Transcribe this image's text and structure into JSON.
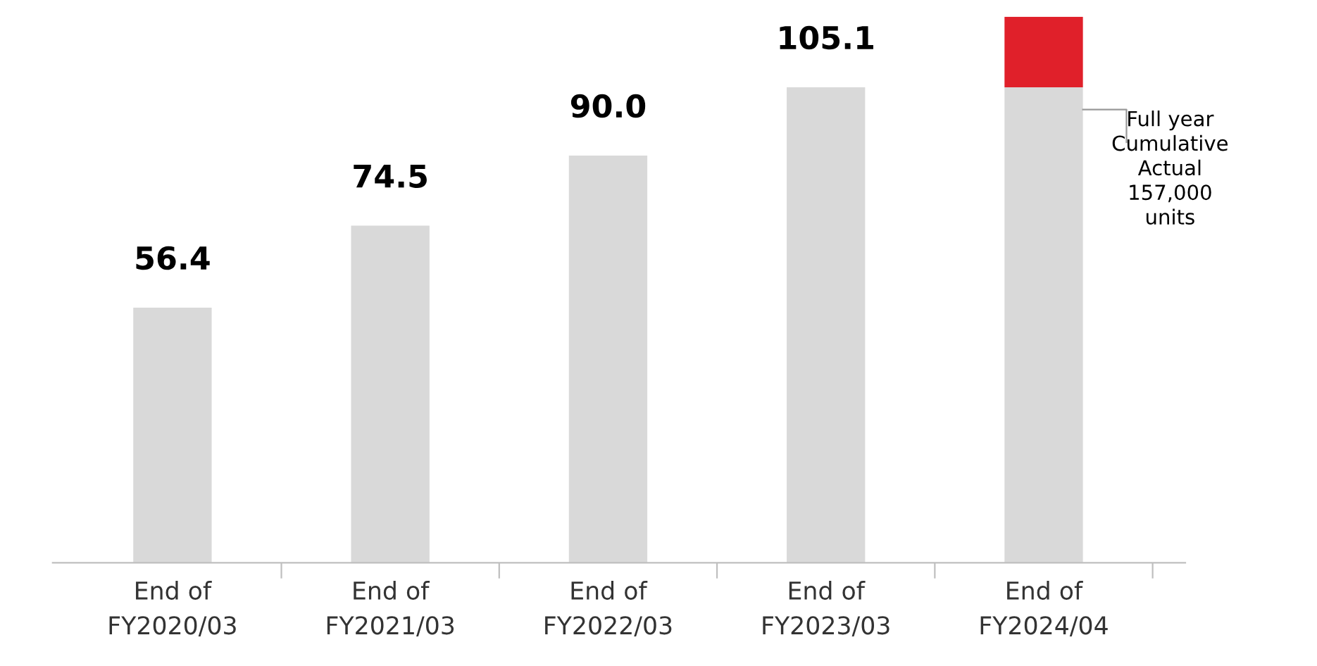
{
  "chart_data": {
    "type": "bar",
    "stacked": true,
    "categories": [
      "End of\nFY2020/03",
      "End of\nFY2021/03",
      "End of\nFY2022/03",
      "End of\nFY2023/03",
      "End of\nFY2024/04"
    ],
    "series": [
      {
        "color": "#d9d9d9",
        "values": [
          56.4,
          74.5,
          90.0,
          105.1,
          105.1
        ],
        "value_labels": [
          "56.4",
          "74.5",
          "90.0",
          "105.1",
          null
        ]
      },
      {
        "color": "#e0202a",
        "values": [
          0,
          0,
          0,
          0,
          15.6
        ]
      }
    ],
    "annotations": [
      "Full year\nCumulative\nActual\n157,000\nunits"
    ],
    "legend": false,
    "grid": false
  }
}
